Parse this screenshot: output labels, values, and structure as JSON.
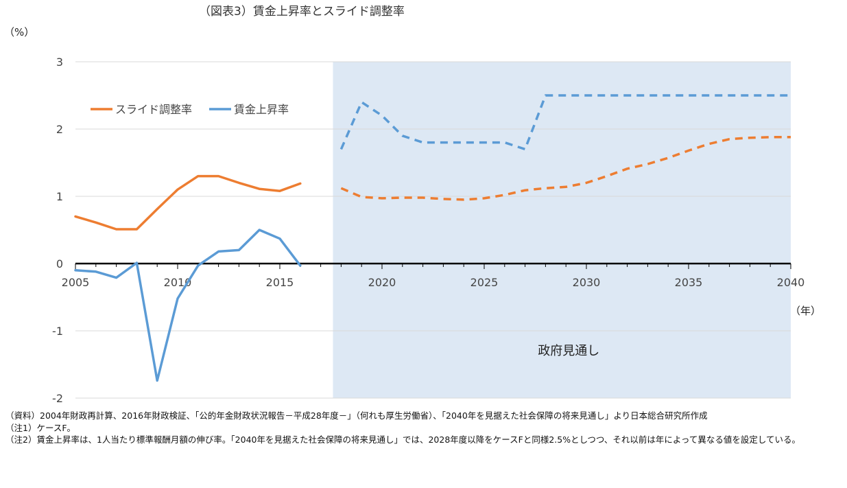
{
  "chart_data": {
    "type": "line",
    "title": "（図表3）賃金上昇率とスライド調整率",
    "ylabel": "（%）",
    "xlabel": "（年）",
    "ylim": [
      -2,
      3
    ],
    "yticks": [
      -2,
      -1,
      0,
      1,
      2,
      3
    ],
    "xlim": [
      2005,
      2040
    ],
    "xticks": [
      2005,
      2010,
      2015,
      2020,
      2025,
      2030,
      2035,
      2040
    ],
    "grid": true,
    "legend_position": "top-left",
    "shaded_region": {
      "x_from": 2017.6,
      "x_to": 2040,
      "label": "政府見通し",
      "color": "#dde8f4"
    },
    "series": [
      {
        "name": "スライド調整率",
        "color": "#ed7d31",
        "segments": [
          {
            "style": "solid",
            "x": [
              2005,
              2006,
              2007,
              2008,
              2009,
              2010,
              2011,
              2012,
              2013,
              2014,
              2015,
              2016
            ],
            "y": [
              0.7,
              0.61,
              0.51,
              0.51,
              0.81,
              1.1,
              1.3,
              1.3,
              1.2,
              1.11,
              1.08,
              1.19
            ]
          },
          {
            "style": "dashed",
            "x": [
              2018,
              2019,
              2020,
              2021,
              2022,
              2023,
              2024,
              2025,
              2026,
              2027,
              2028,
              2029,
              2030,
              2031,
              2032,
              2033,
              2034,
              2035,
              2036,
              2037,
              2038,
              2039,
              2040
            ],
            "y": [
              1.12,
              0.99,
              0.97,
              0.98,
              0.98,
              0.96,
              0.95,
              0.97,
              1.02,
              1.09,
              1.12,
              1.14,
              1.2,
              1.3,
              1.41,
              1.48,
              1.57,
              1.68,
              1.78,
              1.85,
              1.87,
              1.88,
              1.88
            ]
          }
        ]
      },
      {
        "name": "賃金上昇率",
        "color": "#5b9bd5",
        "segments": [
          {
            "style": "solid",
            "x": [
              2005,
              2006,
              2007,
              2008,
              2009,
              2010,
              2011,
              2012,
              2013,
              2014,
              2015,
              2016
            ],
            "y": [
              -0.1,
              -0.12,
              -0.21,
              0.01,
              -1.74,
              -0.52,
              -0.03,
              0.18,
              0.2,
              0.5,
              0.37,
              -0.03
            ]
          },
          {
            "style": "dashed",
            "x": [
              2018,
              2019,
              2020,
              2021,
              2022,
              2023,
              2024,
              2025,
              2026,
              2027,
              2028,
              2029,
              2030,
              2031,
              2032,
              2033,
              2034,
              2035,
              2036,
              2037,
              2038,
              2039,
              2040
            ],
            "y": [
              1.7,
              2.4,
              2.2,
              1.9,
              1.8,
              1.8,
              1.8,
              1.8,
              1.8,
              1.7,
              2.5,
              2.5,
              2.5,
              2.5,
              2.5,
              2.5,
              2.5,
              2.5,
              2.5,
              2.5,
              2.5,
              2.5,
              2.5
            ]
          }
        ]
      }
    ]
  },
  "notes": [
    "（資料）2004年財政再計算、2016年財政検証、「公的年金財政状況報告－平成28年度－」（何れも厚生労働省）、「2040年を見据えた社会保障の将来見通し」より日本総合研究所作成",
    "（注1）ケースF。",
    "（注2）賃金上昇率は、1人当たり標準報酬月額の伸び率。「2040年を見据えた社会保障の将来見通し」では、2028年度以降をケースFと同様2.5%としつつ、それ以前は年によって異なる値を設定している。"
  ]
}
